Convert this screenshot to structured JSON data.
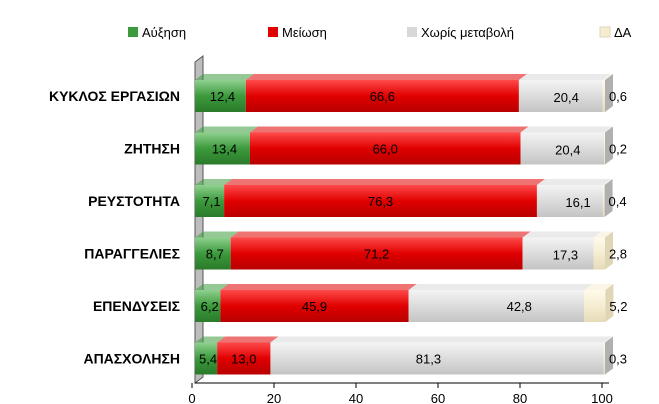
{
  "chart_data": {
    "type": "bar",
    "stacked": true,
    "orientation": "horizontal",
    "categories": [
      "ΚΥΚΛΟΣ ΕΡΓΑΣΙΩΝ",
      "ΖΗΤΗΣΗ",
      "ΡΕΥΣΤΟΤΗΤΑ",
      "ΠΑΡΑΓΓΕΛΙΕΣ",
      "ΕΠΕΝΔΥΣΕΙΣ",
      "ΑΠΑΣΧΟΛΗΣΗ"
    ],
    "series": [
      {
        "name": "Αύξηση",
        "color": "#3c9a3c",
        "values": [
          12.4,
          13.4,
          7.1,
          8.7,
          6.2,
          5.4
        ],
        "labels": [
          "12,4",
          "13,4",
          "7,1",
          "8,7",
          "6,2",
          "5,4"
        ]
      },
      {
        "name": "Μείωση",
        "color": "#e00000",
        "values": [
          66.6,
          66.0,
          76.3,
          71.2,
          45.9,
          13.0
        ],
        "labels": [
          "66,6",
          "66,0",
          "76,3",
          "71,2",
          "45,9",
          "13,0"
        ]
      },
      {
        "name": "Χωρίς μεταβολή",
        "color": "#d8d8d8",
        "values": [
          20.4,
          20.4,
          16.1,
          17.3,
          42.8,
          81.3
        ],
        "labels": [
          "20,4",
          "20,4",
          "16,1",
          "17,3",
          "42,8",
          "81,3"
        ]
      },
      {
        "name": "ΔΑ",
        "color": "#f5edd2",
        "values": [
          0.6,
          0.2,
          0.4,
          2.8,
          5.2,
          0.3
        ],
        "labels": [
          "0,6",
          "0,2",
          "0,4",
          "2,8",
          "5,2",
          "0,3"
        ]
      }
    ],
    "xlim": [
      0,
      100
    ],
    "xticks": [
      "0",
      "20",
      "40",
      "60",
      "80",
      "100"
    ],
    "legend": "top",
    "grid": false
  }
}
